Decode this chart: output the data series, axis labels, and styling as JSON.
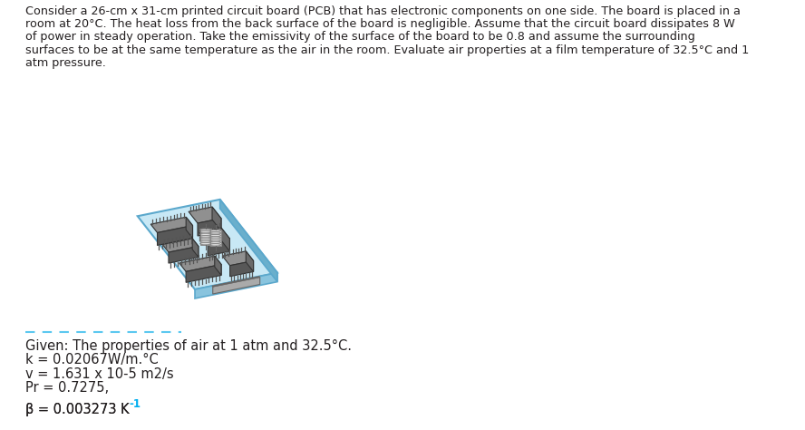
{
  "title_text_lines": [
    "Consider a 26-cm x 31-cm printed circuit board (PCB) that has electronic components on one side. The board is placed in a",
    "room at 20°C. The heat loss from the back surface of the board is negligible. Assume that the circuit board dissipates 8 W",
    "of power in steady operation. Take the emissivity of the surface of the board to be 0.8 and assume the surrounding",
    "surfaces to be at the same temperature as the air in the room. Evaluate air properties at a film temperature of 32.5°C and 1",
    "atm pressure."
  ],
  "given_label": "Given: The properties of air at 1 atm and 32.5°C.",
  "prop1": "k = 0.02067W/m.°C",
  "prop2": "v = 1.631 x 10-5 m2/s",
  "prop3": "Pr = 0.7275,",
  "prop4_main": "β = 0.003273 K",
  "prop4_exp": "-1",
  "text_color": "#231f20",
  "highlight_color": "#00aeef",
  "bg_color": "#ffffff",
  "divider_color": "#5bc8f0",
  "board_top_color": "#c8e8f5",
  "board_side_color": "#89c4de",
  "board_edge_color": "#5ba8cc",
  "board_bottom_color": "#6aafcc",
  "chip_top_color": "#909090",
  "chip_front_color": "#585858",
  "chip_right_color": "#6a6a6a",
  "chip_edge_color": "#333333",
  "pin_color": "#555555",
  "coil_color": "#cccccc",
  "coil_wire_color": "#888888",
  "font_size_title": 9.2,
  "font_size_props": 10.5,
  "font_size_given": 10.5
}
